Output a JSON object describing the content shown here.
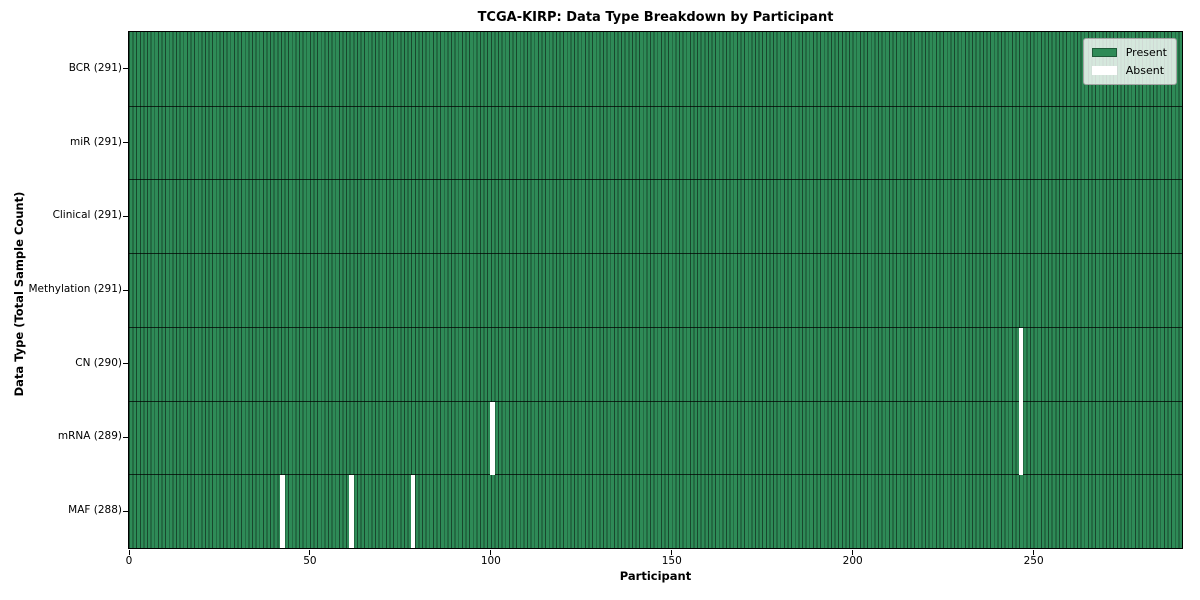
{
  "colors": {
    "present": "#2e8b57",
    "absent": "#ffffff",
    "cell_edge": "rgba(0,0,0,0.48)",
    "row_divider": "rgba(0,0,0,0.72)",
    "axis": "#000000",
    "legend_border": "#a3a3a3",
    "legend_bg": "rgba(255,255,255,0.8)"
  },
  "chart_data": {
    "type": "heatmap",
    "title": "TCGA-KIRP: Data Type Breakdown by Participant",
    "xlabel": "Participant",
    "ylabel": "Data Type (Total Sample Count)",
    "x_ticks": [
      0,
      50,
      100,
      150,
      200,
      250
    ],
    "xlim": [
      0,
      291
    ],
    "n_participants": 291,
    "grid": "horizontal row dividers on, vertical cell edges on every participant column",
    "legend_position": "upper right",
    "legend": [
      {
        "label": "Present",
        "color": "#2e8b57"
      },
      {
        "label": "Absent",
        "color": "#ffffff"
      }
    ],
    "rows": [
      {
        "label": "BCR (291)",
        "data_type": "BCR",
        "present_count": 291,
        "absent_participants": []
      },
      {
        "label": "miR (291)",
        "data_type": "miR",
        "present_count": 291,
        "absent_participants": []
      },
      {
        "label": "Clinical (291)",
        "data_type": "Clinical",
        "present_count": 291,
        "absent_participants": []
      },
      {
        "label": "Methylation (291)",
        "data_type": "Methylation",
        "present_count": 291,
        "absent_participants": []
      },
      {
        "label": "CN (290)",
        "data_type": "CN",
        "present_count": 290,
        "absent_participants": [
          246
        ]
      },
      {
        "label": "mRNA (289)",
        "data_type": "mRNA",
        "present_count": 289,
        "absent_participants": [
          100,
          246
        ]
      },
      {
        "label": "MAF (288)",
        "data_type": "MAF",
        "present_count": 288,
        "absent_participants": [
          42,
          61,
          78
        ]
      }
    ]
  }
}
